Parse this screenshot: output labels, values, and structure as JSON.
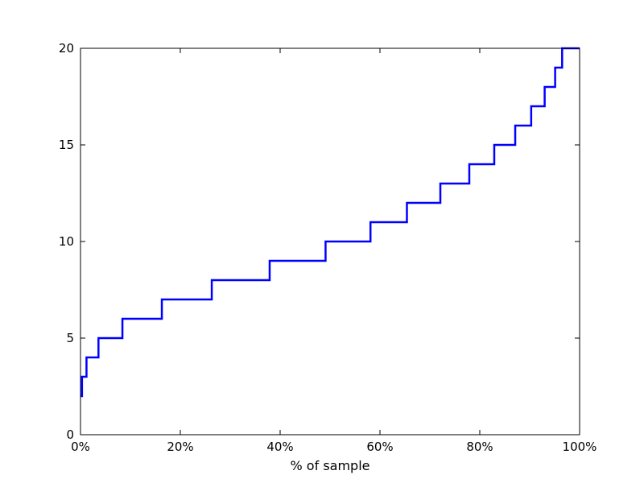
{
  "chart_data": {
    "type": "line",
    "step": "post",
    "title": "",
    "xlabel": "% of sample",
    "ylabel": "",
    "xlim": [
      0,
      100
    ],
    "ylim": [
      0,
      20
    ],
    "x_ticks": [
      {
        "value": 0,
        "label": "0%"
      },
      {
        "value": 20,
        "label": "20%"
      },
      {
        "value": 40,
        "label": "40%"
      },
      {
        "value": 60,
        "label": "60%"
      },
      {
        "value": 80,
        "label": "80%"
      },
      {
        "value": 100,
        "label": "100%"
      }
    ],
    "y_ticks": [
      {
        "value": 0,
        "label": "0"
      },
      {
        "value": 5,
        "label": "5"
      },
      {
        "value": 10,
        "label": "10"
      },
      {
        "value": 15,
        "label": "15"
      },
      {
        "value": 20,
        "label": "20"
      }
    ],
    "grid": false,
    "line_color": "#0000ff",
    "series": [
      {
        "x": [
          0,
          0.3,
          1.2,
          3.6,
          8.4,
          16.3,
          26.3,
          37.9,
          49.1,
          58.1,
          65.4,
          72.1,
          77.9,
          82.9,
          87.1,
          90.3,
          93.0,
          95.1,
          96.5,
          100
        ],
        "y": [
          2,
          3,
          4,
          5,
          6,
          7,
          8,
          9,
          10,
          11,
          12,
          13,
          14,
          15,
          16,
          17,
          18,
          19,
          20,
          20
        ]
      }
    ]
  }
}
